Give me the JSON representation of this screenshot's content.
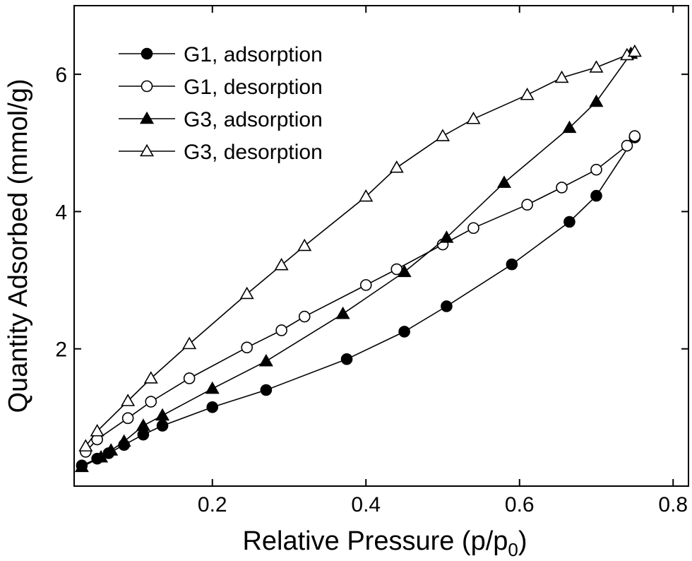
{
  "chart_data": {
    "type": "line",
    "xlabel_main": "Relative Pressure (p/p",
    "xlabel_sub": "0",
    "xlabel_close": ")",
    "ylabel": "Quantity Adsorbed (mmol/g)",
    "xlim": [
      0.02,
      0.82
    ],
    "ylim": [
      0.0,
      7.0
    ],
    "x_ticks": [
      0.2,
      0.4,
      0.6,
      0.8
    ],
    "x_tick_labels": [
      "0.2",
      "0.4",
      "0.6",
      "0.8"
    ],
    "y_ticks": [
      2,
      4,
      6
    ],
    "y_tick_labels": [
      "2",
      "4",
      "6"
    ],
    "grid": false,
    "legend_position": "top-left",
    "series": [
      {
        "name": "G1, adsorption",
        "marker": "circle-filled",
        "x": [
          0.03,
          0.05,
          0.065,
          0.085,
          0.11,
          0.135,
          0.2,
          0.27,
          0.375,
          0.45,
          0.505,
          0.59,
          0.665,
          0.7,
          0.75
        ],
        "y": [
          0.3,
          0.4,
          0.48,
          0.6,
          0.75,
          0.88,
          1.15,
          1.4,
          1.85,
          2.25,
          2.62,
          3.23,
          3.85,
          4.23,
          5.08
        ]
      },
      {
        "name": "G1, desorption",
        "marker": "circle-open",
        "x": [
          0.035,
          0.05,
          0.09,
          0.12,
          0.17,
          0.245,
          0.29,
          0.32,
          0.4,
          0.44,
          0.5,
          0.54,
          0.61,
          0.655,
          0.7,
          0.74,
          0.75
        ],
        "y": [
          0.5,
          0.68,
          0.99,
          1.23,
          1.57,
          2.02,
          2.27,
          2.47,
          2.93,
          3.16,
          3.52,
          3.76,
          4.1,
          4.35,
          4.61,
          4.96,
          5.1
        ]
      },
      {
        "name": "G3, adsorption",
        "marker": "triangle-filled",
        "x": [
          0.03,
          0.055,
          0.068,
          0.085,
          0.11,
          0.135,
          0.2,
          0.27,
          0.37,
          0.45,
          0.505,
          0.58,
          0.665,
          0.7,
          0.745
        ],
        "y": [
          0.28,
          0.42,
          0.52,
          0.65,
          0.88,
          1.03,
          1.42,
          1.82,
          2.51,
          3.12,
          3.62,
          4.42,
          5.22,
          5.6,
          6.3
        ]
      },
      {
        "name": "G3, desorption",
        "marker": "triangle-open",
        "x": [
          0.035,
          0.05,
          0.09,
          0.12,
          0.17,
          0.245,
          0.29,
          0.32,
          0.4,
          0.44,
          0.5,
          0.54,
          0.61,
          0.655,
          0.7,
          0.74,
          0.75
        ],
        "y": [
          0.58,
          0.8,
          1.24,
          1.57,
          2.07,
          2.8,
          3.22,
          3.5,
          4.22,
          4.64,
          5.1,
          5.35,
          5.7,
          5.95,
          6.1,
          6.28,
          6.33
        ]
      }
    ]
  }
}
